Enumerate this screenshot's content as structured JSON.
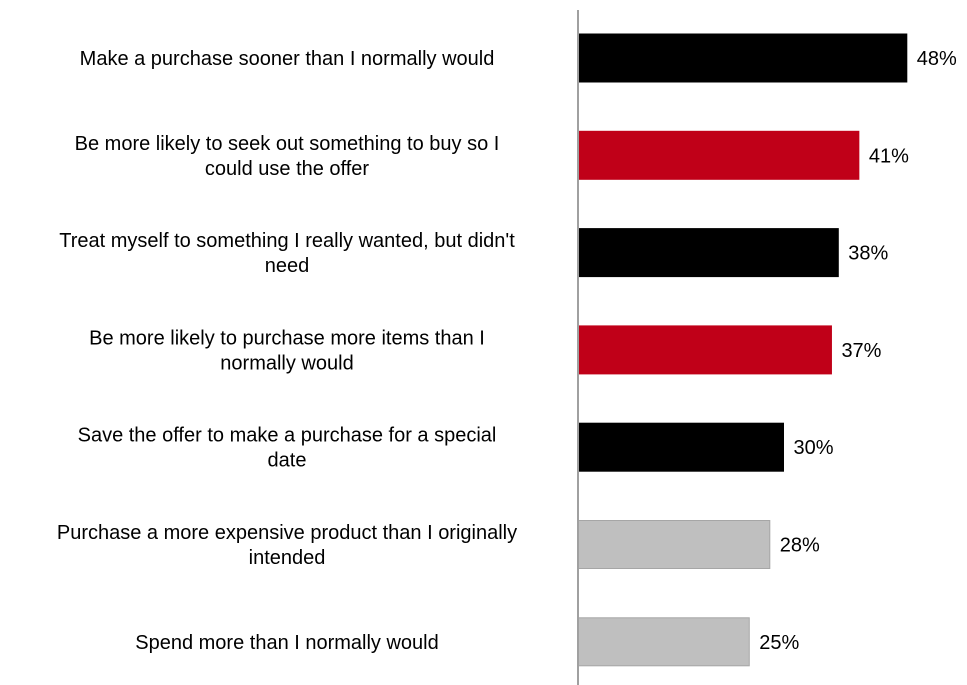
{
  "chart_data": {
    "type": "bar",
    "orientation": "horizontal",
    "title": "",
    "xlabel": "",
    "ylabel": "",
    "grid": false,
    "legend": "none",
    "xlim": [
      0,
      55
    ],
    "categories": [
      [
        "Make a purchase sooner than I normally would"
      ],
      [
        "Be more likely to seek out something to buy so I",
        "could use the offer"
      ],
      [
        "Treat myself to something I really wanted, but didn't",
        "need"
      ],
      [
        "Be more likely to purchase more items than I",
        "normally would"
      ],
      [
        "Save the offer to make a purchase for a special",
        "date"
      ],
      [
        "Purchase a more expensive product than I originally",
        "intended"
      ],
      [
        "Spend more than I normally would"
      ]
    ],
    "values": [
      48,
      41,
      38,
      37,
      30,
      28,
      25
    ],
    "value_labels": [
      "48%",
      "41%",
      "38%",
      "37%",
      "30%",
      "28%",
      "25%"
    ],
    "colors": [
      "#000000",
      "#c00018",
      "#000000",
      "#c00018",
      "#000000",
      "#bfbfbf",
      "#bfbfbf"
    ]
  }
}
